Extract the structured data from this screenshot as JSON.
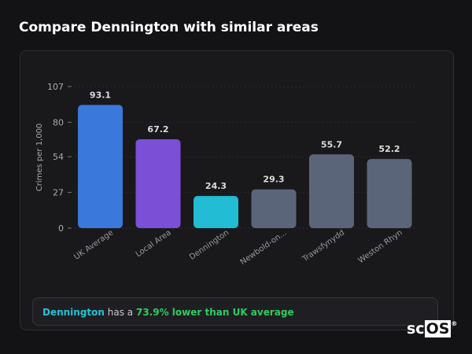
{
  "title": "Compare Dennington with similar areas",
  "chart_data": {
    "type": "bar",
    "title": "",
    "xlabel": "",
    "ylabel": "Crimes per 1,000",
    "ylim": [
      0,
      107
    ],
    "yticks": [
      0,
      27,
      54,
      80,
      107
    ],
    "grid": true,
    "categories": [
      "UK Average",
      "Local Area",
      "Dennington",
      "Newbold-on...",
      "Trawsfynydd",
      "Weston Rhyn"
    ],
    "values": [
      93.1,
      67.2,
      24.3,
      29.3,
      55.7,
      52.2
    ],
    "colors": [
      "#3b78dc",
      "#7b4fd6",
      "#22bcd4",
      "#5b6579",
      "#5b6579",
      "#5b6579"
    ]
  },
  "summary": {
    "place": "Dennington",
    "middle": " has a ",
    "stat": "73.9% lower than UK average"
  },
  "logo": {
    "text_a": "sc",
    "text_b": "OS",
    "mark": "®"
  }
}
